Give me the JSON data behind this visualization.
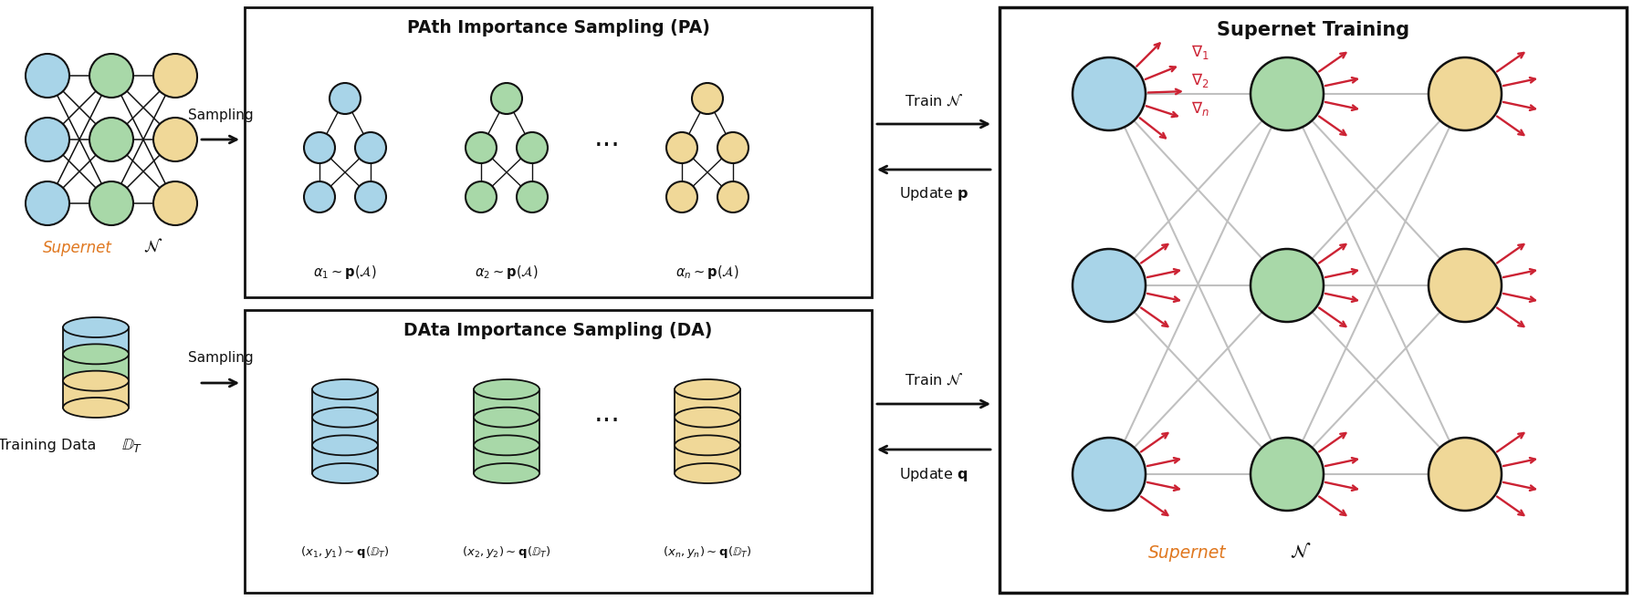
{
  "colors": {
    "blue": "#A8D4E8",
    "green": "#A8D8A8",
    "yellow": "#F0D898",
    "red_arrow": "#CC2233",
    "gray_line": "#C0C0C0",
    "black": "#111111",
    "white": "#FFFFFF",
    "text_orange": "#E07820",
    "text_black": "#111111"
  },
  "figsize": [
    17.9,
    6.58
  ],
  "dpi": 100,
  "xlim": [
    0,
    17.9
  ],
  "ylim": [
    0,
    6.58
  ],
  "title_supernet": "Supernet Training",
  "title_pa": "PAth Importance Sampling (PA)",
  "title_da": "DAta Importance Sampling (DA)",
  "label_supernet": "Supernet",
  "label_training_data": "Training Data",
  "label_sampling": "Sampling",
  "label_train": "Train",
  "label_update_p": "Update",
  "label_update_q": "Update",
  "labels_pa": [
    "$\\alpha_1 \\sim \\mathbf{p}(\\mathcal{A})$",
    "$\\alpha_2 \\sim \\mathbf{p}(\\mathcal{A})$",
    "$\\alpha_n \\sim \\mathbf{p}(\\mathcal{A})$"
  ],
  "labels_da": [
    "$(x_1,y_1) \\sim \\mathbf{q}(\\mathbb{D}_T)$",
    "$(x_2,y_2) \\sim \\mathbf{q}(\\mathbb{D}_T)$",
    "$(x_n,y_n) \\sim \\mathbf{q}(\\mathbb{D}_T)$"
  ]
}
